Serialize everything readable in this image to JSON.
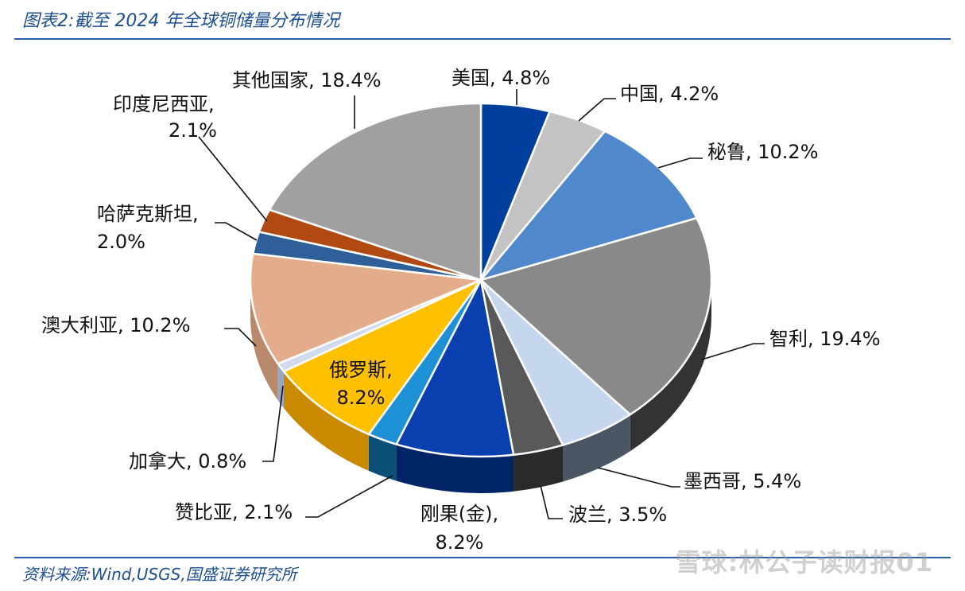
{
  "title": "图表2:截至 2024 年全球铜储量分布情况",
  "source": "资料来源:Wind,USGS,国盛证券研究所",
  "watermark": "雪球:林公子读财报01",
  "chart_data": {
    "type": "pie",
    "title": "图表2:截至 2024 年全球铜储量分布情况",
    "unit": "%",
    "slices": [
      {
        "label": "美国",
        "value": 4.8,
        "label_lines": [
          "美国, 4.8%"
        ],
        "color": "#003f9e",
        "side_color": "#002a6b"
      },
      {
        "label": "中国",
        "value": 4.2,
        "label_lines": [
          "中国, 4.2%"
        ],
        "color": "#c3c3c3",
        "side_color": "#8c8c8c"
      },
      {
        "label": "秘鲁",
        "value": 10.2,
        "label_lines": [
          "秘鲁, 10.2%"
        ],
        "color": "#5088cc",
        "side_color": "#345d90"
      },
      {
        "label": "智利",
        "value": 19.4,
        "label_lines": [
          "智利, 19.4%"
        ],
        "color": "#898989",
        "side_color": "#333333"
      },
      {
        "label": "墨西哥",
        "value": 5.4,
        "label_lines": [
          "墨西哥, 5.4%"
        ],
        "color": "#c4d7ef",
        "side_color": "#4a5663"
      },
      {
        "label": "波兰",
        "value": 3.5,
        "label_lines": [
          "波兰, 3.5%"
        ],
        "color": "#595959",
        "side_color": "#2a2a2a"
      },
      {
        "label": "刚果(金)",
        "value": 8.2,
        "label_lines": [
          "刚果(金),",
          "8.2%"
        ],
        "color": "#0a3fb0",
        "side_color": "#012466"
      },
      {
        "label": "赞比亚",
        "value": 2.1,
        "label_lines": [
          "赞比亚, 2.1%"
        ],
        "color": "#1e90d6",
        "side_color": "#0b4f76"
      },
      {
        "label": "俄罗斯",
        "value": 8.2,
        "label_lines": [
          "俄罗斯,",
          "8.2%"
        ],
        "color": "#ffc000",
        "side_color": "#c98a00"
      },
      {
        "label": "加拿大",
        "value": 0.8,
        "label_lines": [
          "加拿大, 0.8%"
        ],
        "color": "#d2dbee",
        "side_color": "#9aa6bf"
      },
      {
        "label": "澳大利亚",
        "value": 10.2,
        "label_lines": [
          "澳大利亚, 10.2%"
        ],
        "color": "#e3ad8c",
        "side_color": "#b88a6b"
      },
      {
        "label": "哈萨克斯坦",
        "value": 2.0,
        "label_lines": [
          "哈萨克斯坦,",
          "2.0%"
        ],
        "color": "#2f5f99",
        "side_color": "#1e3f66"
      },
      {
        "label": "印度尼西亚",
        "value": 2.1,
        "label_lines": [
          "印度尼西亚,",
          "2.1%"
        ],
        "color": "#b04a12",
        "side_color": "#7a330c"
      },
      {
        "label": "其他国家",
        "value": 18.4,
        "label_lines": [
          "其他国家, 18.4%"
        ],
        "color": "#a0a0a0",
        "side_color": "#6e6e6e"
      }
    ]
  }
}
